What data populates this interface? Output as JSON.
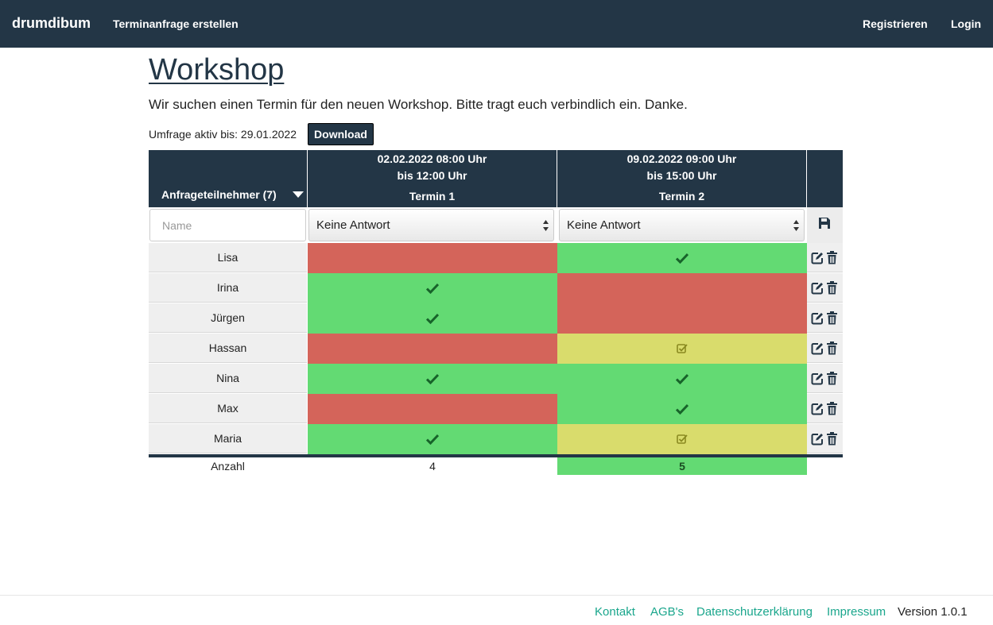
{
  "navbar": {
    "brand": "drumdibum",
    "create_link": "Terminanfrage erstellen",
    "register": "Registrieren",
    "login": "Login"
  },
  "page": {
    "title": "Workshop",
    "description": "Wir suchen einen Termin für den neuen Workshop. Bitte tragt euch verbindlich ein. Danke.",
    "active_until": "Umfrage aktiv bis: 29.01.2022",
    "download_label": "Download"
  },
  "table": {
    "participants_header": "Anfrageteilnehmer (7)",
    "slots": [
      {
        "line1": "02.02.2022 08:00 Uhr",
        "line2": "bis 12:00 Uhr",
        "label": "Termin 1"
      },
      {
        "line1": "09.02.2022 09:00 Uhr",
        "line2": "bis 15:00 Uhr",
        "label": "Termin 2"
      }
    ],
    "name_placeholder": "Name",
    "select_value_1": "Keine Antwort",
    "select_value_2": "Keine Antwort",
    "rows": [
      {
        "name": "Lisa",
        "t1": "no",
        "t2": "yes"
      },
      {
        "name": "Irina",
        "t1": "yes",
        "t2": "no"
      },
      {
        "name": "Jürgen",
        "t1": "yes",
        "t2": "no"
      },
      {
        "name": "Hassan",
        "t1": "no",
        "t2": "maybe"
      },
      {
        "name": "Nina",
        "t1": "yes",
        "t2": "yes"
      },
      {
        "name": "Max",
        "t1": "no",
        "t2": "yes"
      },
      {
        "name": "Maria",
        "t1": "yes",
        "t2": "maybe"
      }
    ],
    "count_label": "Anzahl",
    "count_t1": "4",
    "count_t2": "5"
  },
  "colors": {
    "yes": "#63da73",
    "no": "#d4645a",
    "maybe": "#d9dc6c",
    "header": "#233646"
  },
  "icons": {
    "save": "floppy-disk-icon",
    "edit": "edit-icon",
    "delete": "trash-icon",
    "yes": "check-icon",
    "maybe": "check-square-icon"
  },
  "footer": {
    "links": [
      "Kontakt",
      "AGB's",
      "Datenschutzerklärung",
      "Impressum"
    ],
    "version": "Version 1.0.1"
  }
}
